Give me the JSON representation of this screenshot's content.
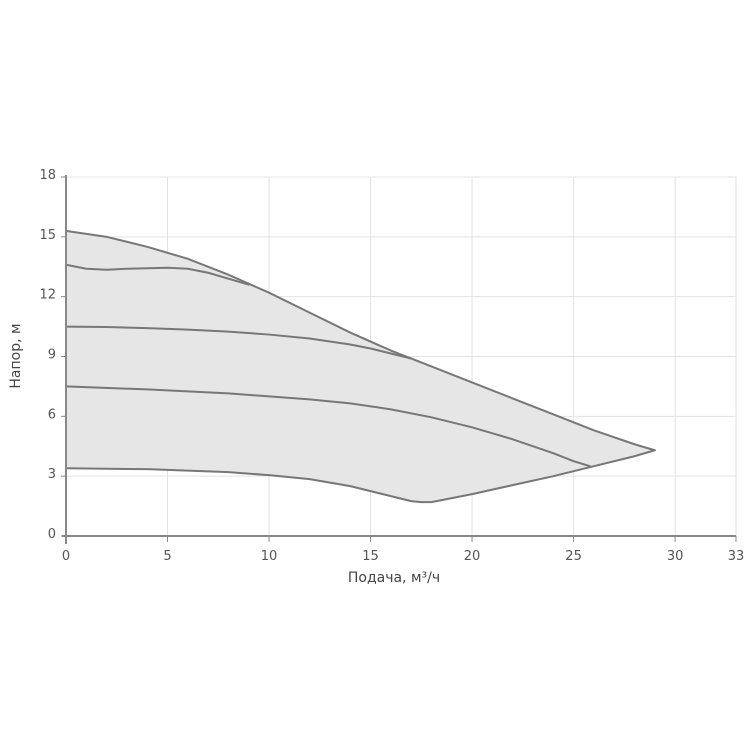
{
  "chart_data": {
    "type": "line",
    "xlabel": "Подача, м³/ч",
    "ylabel": "Напор, м",
    "xlim": [
      0,
      33
    ],
    "ylim": [
      0,
      18
    ],
    "x_ticks": [
      "0",
      "5",
      "10",
      "15",
      "20",
      "25",
      "30",
      "33"
    ],
    "x_tick_values": [
      0,
      5,
      10,
      15,
      20,
      25,
      30,
      33
    ],
    "y_ticks": [
      "0",
      "3",
      "6",
      "9",
      "12",
      "15",
      "18"
    ],
    "y_tick_values": [
      0,
      3,
      6,
      9,
      12,
      15,
      18
    ],
    "grid": true,
    "legend": "none",
    "fill_color": "#e6e6e6",
    "curve_color": "#777777",
    "grid_color": "#e3e3e3",
    "series": [
      {
        "x": [
          0,
          2,
          4,
          6,
          8,
          10,
          12,
          14,
          16,
          18,
          20,
          22,
          24,
          26,
          28,
          29
        ],
        "y": [
          15.3,
          15.0,
          14.5,
          13.9,
          13.1,
          12.2,
          11.2,
          10.2,
          9.3,
          8.5,
          7.7,
          6.9,
          6.1,
          5.3,
          4.6,
          4.3
        ]
      },
      {
        "x": [
          0,
          1,
          2,
          3,
          5,
          6,
          7,
          8,
          9
        ],
        "y": [
          13.6,
          13.4,
          13.35,
          13.4,
          13.45,
          13.4,
          13.2,
          12.9,
          12.6
        ]
      },
      {
        "x": [
          0,
          2,
          4,
          6,
          8,
          10,
          12,
          14,
          15,
          16,
          17
        ],
        "y": [
          10.5,
          10.48,
          10.42,
          10.35,
          10.25,
          10.1,
          9.9,
          9.6,
          9.4,
          9.15,
          8.9
        ]
      },
      {
        "x": [
          0,
          4,
          8,
          10,
          12,
          14,
          16,
          18,
          20,
          22,
          24,
          25,
          25.8
        ],
        "y": [
          7.5,
          7.35,
          7.15,
          7.0,
          6.85,
          6.65,
          6.35,
          5.95,
          5.45,
          4.85,
          4.15,
          3.75,
          3.5
        ]
      },
      {
        "x": [
          0,
          4,
          8,
          10,
          12,
          14,
          15,
          16,
          17,
          17.5,
          18,
          20,
          22,
          24,
          26,
          28,
          29
        ],
        "y": [
          3.4,
          3.35,
          3.2,
          3.05,
          2.85,
          2.5,
          2.25,
          2.0,
          1.75,
          1.7,
          1.7,
          2.1,
          2.55,
          3.0,
          3.5,
          4.0,
          4.3
        ]
      }
    ]
  }
}
